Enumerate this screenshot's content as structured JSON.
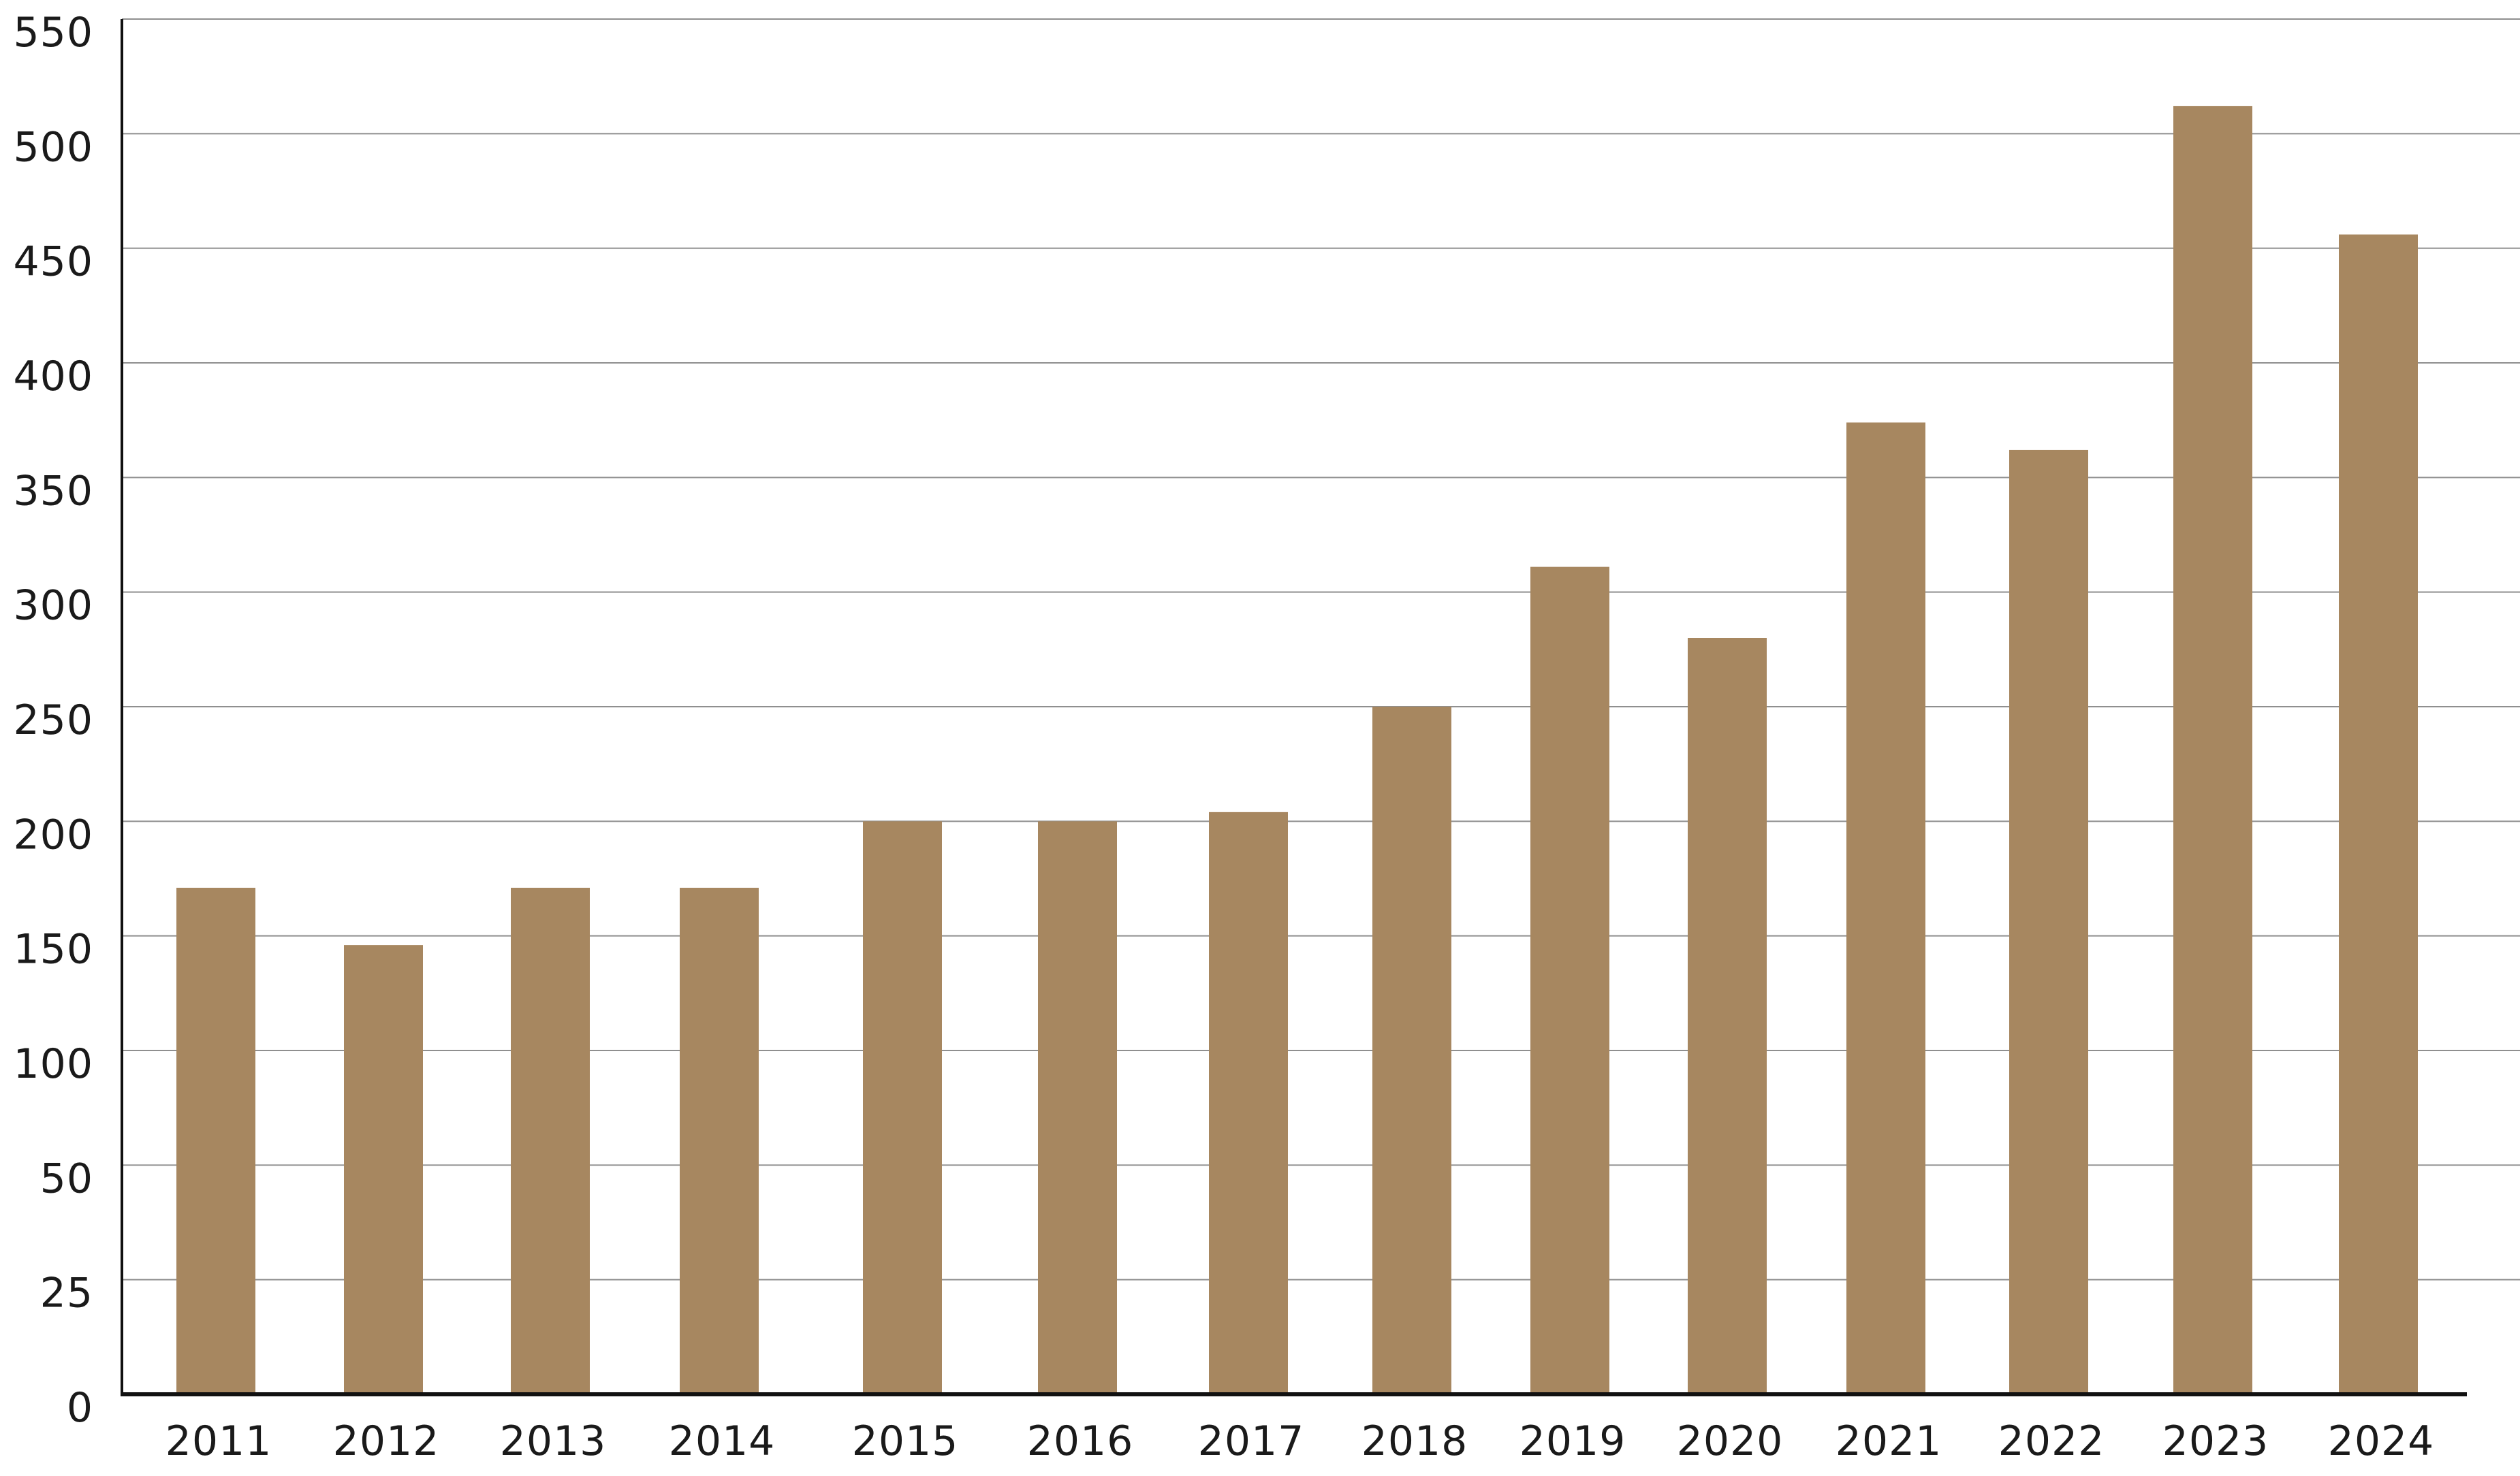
{
  "chart_data": {
    "type": "bar",
    "categories": [
      "2011",
      "2012",
      "2013",
      "2014",
      "2015",
      "2016",
      "2017",
      "2018",
      "2019",
      "2020",
      "2021",
      "2022",
      "2023",
      "2024"
    ],
    "values": [
      171,
      146,
      171,
      171,
      200,
      200,
      204,
      250,
      311,
      280,
      374,
      362,
      512,
      456
    ],
    "yticks": [
      0,
      25,
      50,
      100,
      150,
      200,
      250,
      300,
      350,
      400,
      450,
      500,
      550
    ],
    "ylim": [
      0,
      550
    ],
    "grid": true,
    "legend": "none"
  },
  "colors": {
    "bar": "#a78760",
    "grid": "#8f8f8f",
    "axis": "#111111",
    "text": "#1a1a1a"
  }
}
